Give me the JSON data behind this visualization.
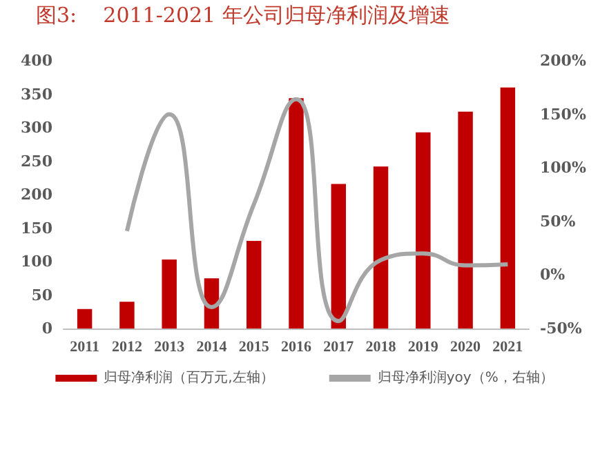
{
  "chart_data": {
    "type": "bar",
    "title": "图3:    2011-2021 年公司归母净利润及增速",
    "categories": [
      "2011",
      "2012",
      "2013",
      "2014",
      "2015",
      "2016",
      "2017",
      "2018",
      "2019",
      "2020",
      "2021"
    ],
    "series": [
      {
        "name": "归母净利润（百万元,左轴）",
        "color": "#c00000",
        "values": [
          29,
          40,
          103,
          75,
          131,
          344,
          216,
          242,
          293,
          324,
          360
        ]
      },
      {
        "name": "归母净利润yoy（%，右轴）",
        "type": "line",
        "axis": "y2",
        "color": "#a6a6a6",
        "values": [
          null,
          41,
          150,
          -30,
          66,
          164,
          -43,
          14,
          20,
          9,
          10
        ]
      }
    ],
    "ylim": [
      0,
      400
    ],
    "yticks": [
      0,
      50,
      100,
      150,
      200,
      250,
      300,
      350,
      400
    ],
    "y2lim": [
      -50,
      200
    ],
    "y2ticks": [
      {
        "value": -50,
        "label": "-50%"
      },
      {
        "value": 0,
        "label": "0%"
      },
      {
        "value": 50,
        "label": "50%"
      },
      {
        "value": 100,
        "label": "100%"
      },
      {
        "value": 150,
        "label": "150%"
      },
      {
        "value": 200,
        "label": "200%"
      }
    ],
    "grid": false,
    "legend": "bottom",
    "marker": "none",
    "line_style": "solid"
  }
}
